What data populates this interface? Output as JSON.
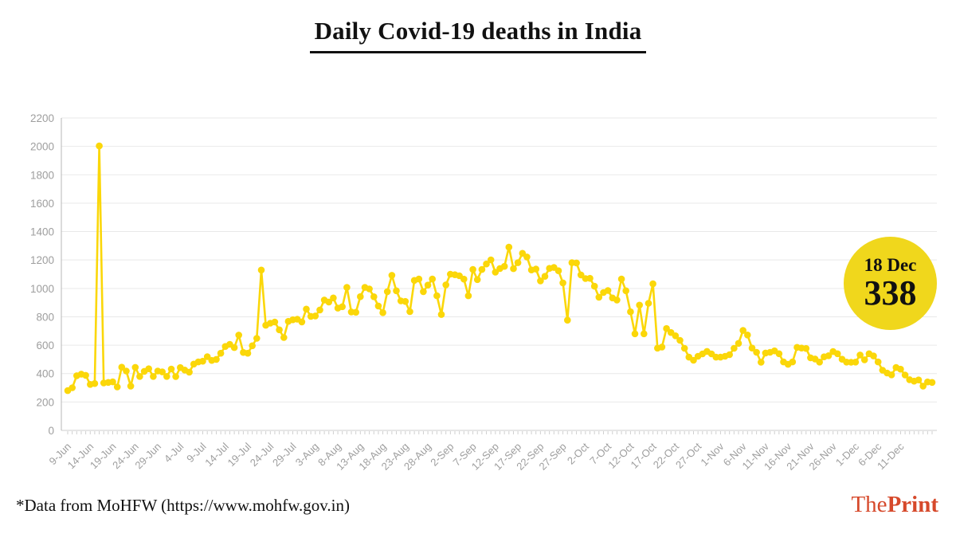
{
  "header": {
    "title": "Daily Covid-19 deaths in India"
  },
  "badge": {
    "date": "18 Dec",
    "value": "338",
    "color": "#f0d71c",
    "text_color": "#111111"
  },
  "footer": {
    "source_note": "*Data from MoHFW (https://www.mohfw.gov.in)",
    "logo": {
      "part1": "The",
      "part2": "Print",
      "color": "#d6492b"
    }
  },
  "chart_data": {
    "type": "line",
    "title": "Daily Covid-19 deaths in India",
    "series_name": "Daily Covid-19 deaths",
    "xlabel": "",
    "ylabel": "",
    "start_date": "9-Jun",
    "end_date": "18-Dec",
    "sampling": "daily",
    "ylim": [
      0,
      2200
    ],
    "y_ticks": [
      0,
      200,
      400,
      600,
      800,
      1000,
      1200,
      1400,
      1600,
      1800,
      2000,
      2200
    ],
    "x_tick_interval_days": 5,
    "x_tick_labels": [
      "9-Jun",
      "14-Jun",
      "19-Jun",
      "24-Jun",
      "29-Jun",
      "4-Jul",
      "9-Jul",
      "14-Jul",
      "19-Jul",
      "24-Jul",
      "29-Jul",
      "3-Aug",
      "8-Aug",
      "13-Aug",
      "18-Aug",
      "23-Aug",
      "28-Aug",
      "2-Sep",
      "7-Sep",
      "12-Sep",
      "17-Sep",
      "22-Sep",
      "27-Sep",
      "2-Oct",
      "7-Oct",
      "12-Oct",
      "17-Oct",
      "22-Oct",
      "27-Oct",
      "1-Nov",
      "6-Nov",
      "11-Nov",
      "16-Nov",
      "21-Nov",
      "26-Nov",
      "1-Dec",
      "6-Dec",
      "11-Dec"
    ],
    "x_label_rotation": -45,
    "grid": "horizontal",
    "legend": "none",
    "line_color": "#fbd709",
    "point_color": "#fbd709",
    "values": [
      280,
      300,
      385,
      396,
      388,
      324,
      330,
      2003,
      334,
      338,
      342,
      306,
      445,
      418,
      312,
      444,
      380,
      416,
      434,
      380,
      418,
      412,
      380,
      432,
      379,
      442,
      425,
      410,
      467,
      482,
      487,
      519,
      493,
      500,
      543,
      591,
      606,
      583,
      671,
      549,
      543,
      596,
      648,
      1129,
      740,
      755,
      763,
      708,
      654,
      768,
      779,
      783,
      764,
      854,
      803,
      806,
      848,
      918,
      904,
      933,
      861,
      871,
      1007,
      834,
      832,
      942,
      1007,
      996,
      941,
      876,
      829,
      977,
      1092,
      983,
      912,
      908,
      836,
      1056,
      1066,
      977,
      1023,
      1066,
      948,
      816,
      1025,
      1100,
      1096,
      1089,
      1065,
      948,
      1133,
      1062,
      1133,
      1172,
      1201,
      1114,
      1140,
      1155,
      1290,
      1139,
      1181,
      1247,
      1221,
      1130,
      1136,
      1053,
      1085,
      1141,
      1147,
      1124,
      1039,
      776,
      1181,
      1179,
      1095,
      1069,
      1071,
      1015,
      938,
      971,
      985,
      933,
      918,
      1066,
      983,
      835,
      680,
      882,
      680,
      895,
      1032,
      579,
      587,
      717,
      689,
      666,
      634,
      578,
      516,
      494,
      522,
      539,
      556,
      539,
      516,
      516,
      522,
      533,
      578,
      613,
      704,
      672,
      580,
      550,
      480,
      545,
      550,
      560,
      540,
      482,
      465,
      482,
      585,
      580,
      577,
      511,
      503,
      481,
      518,
      526,
      555,
      540,
      501,
      481,
      480,
      481,
      531,
      497,
      540,
      524,
      482,
      424,
      404,
      391,
      443,
      431,
      390,
      357,
      347,
      355,
      312,
      341,
      338
    ],
    "annotations": [
      {
        "label": "18 Dec",
        "value": 338
      }
    ]
  }
}
